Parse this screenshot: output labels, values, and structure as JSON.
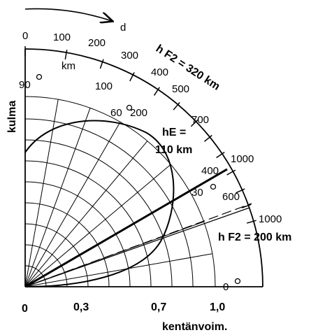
{
  "diagram": {
    "ground_angle_arrow_label": "d",
    "distance_unit": "km",
    "distance_ticks_outer": [
      "0",
      "100",
      "200",
      "300",
      "400",
      "500",
      "700",
      "1000",
      "600",
      "1000"
    ],
    "labels": {
      "tick_0": "0",
      "tick_100": "100",
      "tick_200": "200",
      "tick_300": "300",
      "tick_400": "400",
      "tick_500": "500",
      "tick_700": "700",
      "tick_1000_a": "1000",
      "km": "km",
      "hf2_320": "h F2 = 320 km",
      "inner_100": "100",
      "inner_200": "200",
      "inner_400": "400",
      "inner_600": "600",
      "inner_1000": "1000",
      "he_line1": "hE =",
      "he_line2": "110 km",
      "hf2_200": "h F2 = 200 km",
      "deg_90": "90",
      "deg_60": "60",
      "deg_30": "30",
      "deg_0": "0",
      "kulma": "kulma",
      "x0": "0",
      "x03": "0,3",
      "x07": "0,7",
      "x10": "1,0",
      "kentanvoim": "kentänvoim."
    }
  }
}
